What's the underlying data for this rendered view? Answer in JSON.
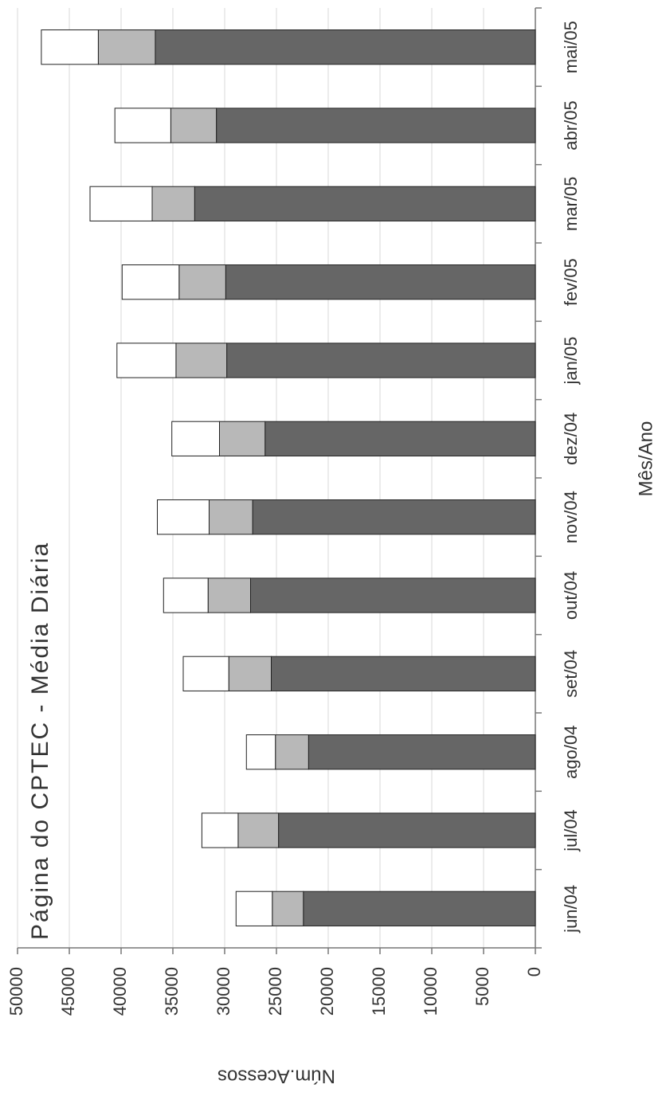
{
  "chart_data": {
    "type": "bar",
    "stacked": true,
    "title": "Página do CPTEC - Média Diária",
    "x_label": "Mês/Ano",
    "y_label": "Núm.Acessos",
    "categories": [
      "jun/04",
      "jul/04",
      "ago/04",
      "set/04",
      "out/04",
      "nov/04",
      "dez/04",
      "jan/05",
      "fev/05",
      "mar/05",
      "abr/05",
      "mai/05"
    ],
    "series": [
      {
        "color": "#666666",
        "values": [
          22400,
          24800,
          21900,
          25500,
          27500,
          27300,
          26100,
          29800,
          29900,
          32900,
          30800,
          36700
        ]
      },
      {
        "color": "#b8b8b8",
        "values": [
          3000,
          3900,
          3200,
          4100,
          4100,
          4200,
          4400,
          4900,
          4500,
          4100,
          4400,
          5500
        ]
      },
      {
        "color": "#ffffff",
        "values": [
          3500,
          3500,
          2800,
          4400,
          4300,
          5000,
          4600,
          5700,
          5500,
          6000,
          5400,
          5500
        ]
      }
    ],
    "ylim": [
      0,
      50000
    ],
    "yticks": [
      0,
      5000,
      10000,
      15000,
      20000,
      25000,
      30000,
      35000,
      40000,
      45000,
      50000
    ],
    "grid": true
  }
}
